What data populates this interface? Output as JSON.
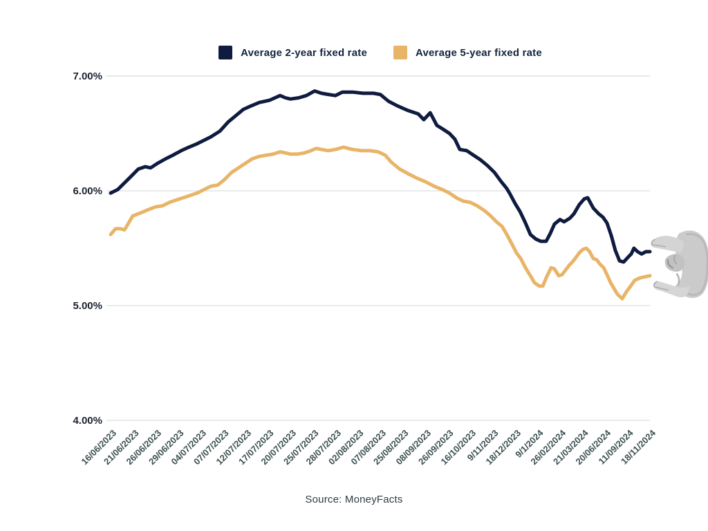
{
  "legend": {
    "items": [
      {
        "label": "Average 2-year fixed rate",
        "color": "#0f1c3f"
      },
      {
        "label": "Average 5-year fixed rate",
        "color": "#e8b467"
      }
    ]
  },
  "chart_data": {
    "type": "line",
    "title": "",
    "x_labels": [
      "16/06/2023",
      "21/06/2023",
      "26/06/2023",
      "29/06/2023",
      "04/07/2023",
      "07/07/2023",
      "12/07/2023",
      "17/07/2023",
      "20/07/2023",
      "25/07/2023",
      "28/07/2023",
      "02/08/2023",
      "07/08/2023",
      "25/08/2023",
      "08/09/2023",
      "26/09/2023",
      "16/10/2023",
      "9/11/2023",
      "18/12/2023",
      "9/1/2024",
      "26/02/2024",
      "21/03/2024",
      "20/06/2024",
      "11/09/2024",
      "18/11/2024"
    ],
    "y_ticks": [
      "7.00%",
      "6.00%",
      "5.00%",
      "4.00%"
    ],
    "ylim": [
      4.0,
      7.0
    ],
    "grid": true,
    "legend_position": "top-center",
    "series": [
      {
        "name": "Average 2-year fixed rate",
        "color": "#0f1c3f",
        "points": [
          [
            0,
            5.98
          ],
          [
            0.31,
            6.01
          ],
          [
            0.62,
            6.07
          ],
          [
            0.98,
            6.14
          ],
          [
            1.23,
            6.19
          ],
          [
            1.54,
            6.21
          ],
          [
            1.78,
            6.2
          ],
          [
            2.09,
            6.24
          ],
          [
            2.46,
            6.28
          ],
          [
            2.77,
            6.31
          ],
          [
            3.14,
            6.35
          ],
          [
            3.48,
            6.38
          ],
          [
            3.85,
            6.41
          ],
          [
            4.15,
            6.44
          ],
          [
            4.46,
            6.47
          ],
          [
            4.86,
            6.52
          ],
          [
            5.23,
            6.6
          ],
          [
            5.54,
            6.65
          ],
          [
            5.91,
            6.71
          ],
          [
            6.25,
            6.74
          ],
          [
            6.62,
            6.77
          ],
          [
            7.08,
            6.79
          ],
          [
            7.54,
            6.83
          ],
          [
            7.78,
            6.81
          ],
          [
            8.0,
            6.8
          ],
          [
            8.37,
            6.81
          ],
          [
            8.71,
            6.83
          ],
          [
            9.08,
            6.87
          ],
          [
            9.38,
            6.85
          ],
          [
            9.69,
            6.84
          ],
          [
            10.0,
            6.83
          ],
          [
            10.31,
            6.86
          ],
          [
            10.77,
            6.86
          ],
          [
            11.23,
            6.85
          ],
          [
            11.69,
            6.85
          ],
          [
            12.0,
            6.84
          ],
          [
            12.37,
            6.78
          ],
          [
            12.77,
            6.74
          ],
          [
            13.23,
            6.7
          ],
          [
            13.69,
            6.67
          ],
          [
            13.94,
            6.62
          ],
          [
            14.22,
            6.68
          ],
          [
            14.52,
            6.57
          ],
          [
            14.77,
            6.54
          ],
          [
            15.08,
            6.5
          ],
          [
            15.32,
            6.45
          ],
          [
            15.54,
            6.36
          ],
          [
            15.85,
            6.35
          ],
          [
            16.15,
            6.31
          ],
          [
            16.46,
            6.27
          ],
          [
            16.77,
            6.22
          ],
          [
            17.08,
            6.16
          ],
          [
            17.38,
            6.08
          ],
          [
            17.63,
            6.02
          ],
          [
            17.78,
            5.97
          ],
          [
            18.0,
            5.89
          ],
          [
            18.22,
            5.82
          ],
          [
            18.46,
            5.72
          ],
          [
            18.68,
            5.62
          ],
          [
            18.92,
            5.58
          ],
          [
            19.14,
            5.56
          ],
          [
            19.38,
            5.56
          ],
          [
            19.57,
            5.63
          ],
          [
            19.75,
            5.71
          ],
          [
            20.0,
            5.75
          ],
          [
            20.18,
            5.73
          ],
          [
            20.43,
            5.76
          ],
          [
            20.62,
            5.8
          ],
          [
            20.86,
            5.88
          ],
          [
            21.08,
            5.93
          ],
          [
            21.23,
            5.94
          ],
          [
            21.48,
            5.85
          ],
          [
            21.72,
            5.8
          ],
          [
            21.91,
            5.77
          ],
          [
            22.09,
            5.72
          ],
          [
            22.28,
            5.61
          ],
          [
            22.46,
            5.48
          ],
          [
            22.65,
            5.39
          ],
          [
            22.83,
            5.38
          ],
          [
            23.02,
            5.42
          ],
          [
            23.17,
            5.45
          ],
          [
            23.29,
            5.5
          ],
          [
            23.45,
            5.47
          ],
          [
            23.63,
            5.45
          ],
          [
            23.82,
            5.47
          ],
          [
            24.0,
            5.47
          ]
        ]
      },
      {
        "name": "Average 5-year fixed rate",
        "color": "#e8b467",
        "points": [
          [
            0,
            5.62
          ],
          [
            0.22,
            5.67
          ],
          [
            0.43,
            5.67
          ],
          [
            0.62,
            5.66
          ],
          [
            0.8,
            5.72
          ],
          [
            0.98,
            5.78
          ],
          [
            1.23,
            5.8
          ],
          [
            1.48,
            5.82
          ],
          [
            1.72,
            5.84
          ],
          [
            2.0,
            5.86
          ],
          [
            2.31,
            5.87
          ],
          [
            2.62,
            5.9
          ],
          [
            2.92,
            5.92
          ],
          [
            3.23,
            5.94
          ],
          [
            3.54,
            5.96
          ],
          [
            3.85,
            5.98
          ],
          [
            4.15,
            6.01
          ],
          [
            4.46,
            6.04
          ],
          [
            4.77,
            6.05
          ],
          [
            5.08,
            6.1
          ],
          [
            5.38,
            6.16
          ],
          [
            5.69,
            6.2
          ],
          [
            6.0,
            6.24
          ],
          [
            6.31,
            6.28
          ],
          [
            6.62,
            6.3
          ],
          [
            6.92,
            6.31
          ],
          [
            7.23,
            6.32
          ],
          [
            7.54,
            6.34
          ],
          [
            7.78,
            6.33
          ],
          [
            8.0,
            6.32
          ],
          [
            8.31,
            6.32
          ],
          [
            8.62,
            6.33
          ],
          [
            8.92,
            6.35
          ],
          [
            9.14,
            6.37
          ],
          [
            9.38,
            6.36
          ],
          [
            9.69,
            6.35
          ],
          [
            10.0,
            6.36
          ],
          [
            10.37,
            6.38
          ],
          [
            10.77,
            6.36
          ],
          [
            11.17,
            6.35
          ],
          [
            11.54,
            6.35
          ],
          [
            11.91,
            6.34
          ],
          [
            12.22,
            6.31
          ],
          [
            12.49,
            6.25
          ],
          [
            12.86,
            6.19
          ],
          [
            13.23,
            6.15
          ],
          [
            13.63,
            6.11
          ],
          [
            14.0,
            6.08
          ],
          [
            14.4,
            6.04
          ],
          [
            14.77,
            6.01
          ],
          [
            15.08,
            5.98
          ],
          [
            15.38,
            5.94
          ],
          [
            15.69,
            5.91
          ],
          [
            16.0,
            5.9
          ],
          [
            16.31,
            5.87
          ],
          [
            16.62,
            5.83
          ],
          [
            16.92,
            5.78
          ],
          [
            17.17,
            5.73
          ],
          [
            17.42,
            5.69
          ],
          [
            17.63,
            5.62
          ],
          [
            17.85,
            5.54
          ],
          [
            18.06,
            5.46
          ],
          [
            18.25,
            5.41
          ],
          [
            18.46,
            5.33
          ],
          [
            18.68,
            5.26
          ],
          [
            18.86,
            5.2
          ],
          [
            19.08,
            5.17
          ],
          [
            19.23,
            5.17
          ],
          [
            19.38,
            5.24
          ],
          [
            19.6,
            5.33
          ],
          [
            19.75,
            5.32
          ],
          [
            19.94,
            5.26
          ],
          [
            20.09,
            5.27
          ],
          [
            20.25,
            5.31
          ],
          [
            20.4,
            5.35
          ],
          [
            20.55,
            5.38
          ],
          [
            20.71,
            5.42
          ],
          [
            20.86,
            5.46
          ],
          [
            21.02,
            5.49
          ],
          [
            21.17,
            5.5
          ],
          [
            21.32,
            5.47
          ],
          [
            21.48,
            5.41
          ],
          [
            21.63,
            5.4
          ],
          [
            21.78,
            5.36
          ],
          [
            21.94,
            5.33
          ],
          [
            22.09,
            5.27
          ],
          [
            22.25,
            5.2
          ],
          [
            22.4,
            5.15
          ],
          [
            22.55,
            5.1
          ],
          [
            22.77,
            5.06
          ],
          [
            22.95,
            5.12
          ],
          [
            23.14,
            5.17
          ],
          [
            23.32,
            5.22
          ],
          [
            23.54,
            5.24
          ],
          [
            23.75,
            5.25
          ],
          [
            24.0,
            5.26
          ]
        ]
      }
    ]
  },
  "footer": {
    "source": "Source: MoneyFacts"
  },
  "icons": {
    "hand": "hand-pinch"
  },
  "colors": {
    "grid": "#dadedf",
    "y_label": "#1a2430",
    "x_label": "#3c4f50"
  }
}
